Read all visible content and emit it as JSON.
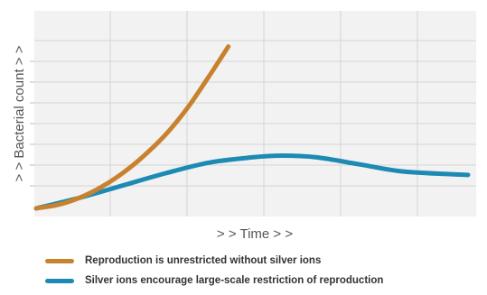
{
  "chart_data": {
    "type": "line",
    "xlabel": "> > Time > >",
    "ylabel": "> > Bacterial count > >",
    "grid": true,
    "x_range": [
      0,
      100
    ],
    "y_range": [
      0,
      100
    ],
    "series": [
      {
        "name": "Reproduction is unrestricted without silver ions",
        "color": "#c8822e",
        "x": [
          0,
          5,
          10,
          15,
          20,
          25,
          30,
          35,
          40,
          44.5
        ],
        "y": [
          0,
          2,
          6,
          12,
          20,
          30,
          42,
          57,
          75,
          92
        ]
      },
      {
        "name": "Silver ions encourage large-scale restriction of reproduction",
        "color": "#1d8ab4",
        "x": [
          0,
          10,
          20,
          30,
          40,
          50,
          57,
          65,
          75,
          85,
          100
        ],
        "y": [
          0,
          6,
          13,
          20,
          26,
          29,
          30,
          29,
          25,
          21,
          19
        ]
      }
    ]
  }
}
